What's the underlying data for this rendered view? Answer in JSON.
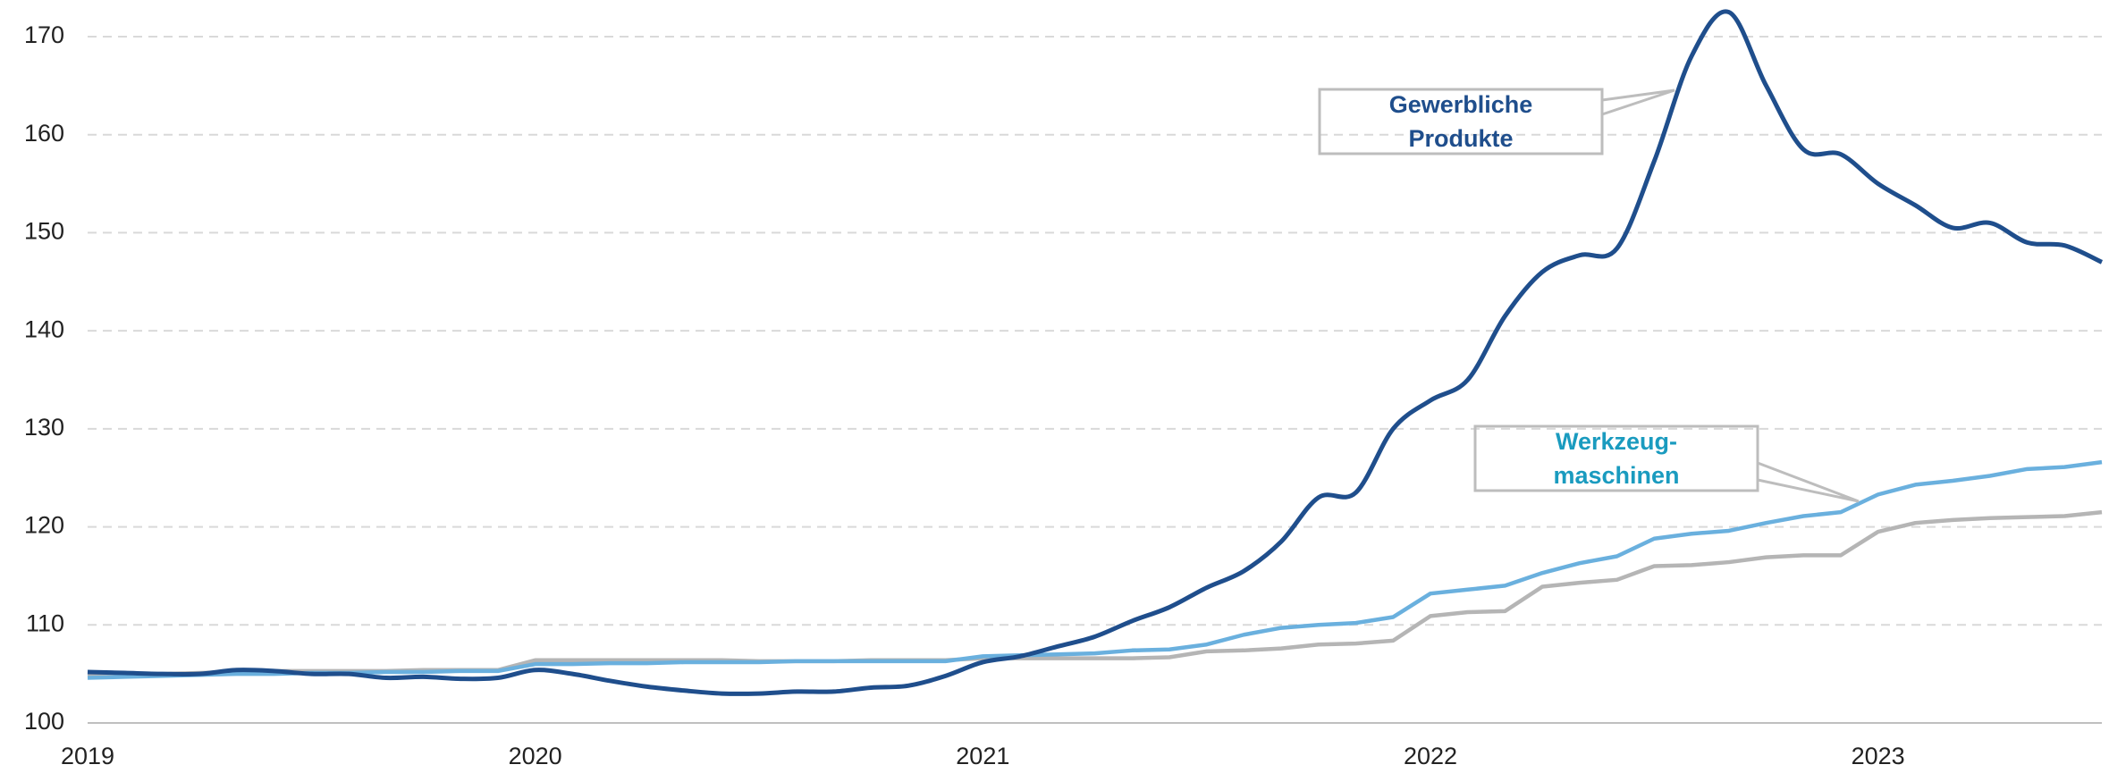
{
  "chart_data": {
    "type": "line",
    "categories": [
      "2019",
      null,
      null,
      null,
      null,
      null,
      null,
      null,
      null,
      null,
      null,
      null,
      "2020",
      null,
      null,
      null,
      null,
      null,
      null,
      null,
      null,
      null,
      null,
      null,
      "2021",
      null,
      null,
      null,
      null,
      null,
      null,
      null,
      null,
      null,
      null,
      null,
      "2022",
      null,
      null,
      null,
      null,
      null,
      null,
      null,
      null,
      null,
      null,
      null,
      "2023",
      null,
      null,
      null,
      null,
      null,
      null
    ],
    "series": [
      {
        "name": "Gewerbliche Produkte",
        "color": "#1f4e8c",
        "label_color": "#1f4e8c",
        "smooth": true,
        "values": [
          105.2,
          105.1,
          105.0,
          105.0,
          105.4,
          105.3,
          105.0,
          105.0,
          104.6,
          104.7,
          104.5,
          104.6,
          105.4,
          105.0,
          104.3,
          103.7,
          103.3,
          103.0,
          103.0,
          103.2,
          103.2,
          103.6,
          103.8,
          104.8,
          106.2,
          106.8,
          107.8,
          108.8,
          110.4,
          111.8,
          113.8,
          115.5,
          118.5,
          123.0,
          123.5,
          130.0,
          132.9,
          135.0,
          141.5,
          146.0,
          147.7,
          148.4,
          157.3,
          168.0,
          172.5,
          165.0,
          158.5,
          158.0,
          155.0,
          152.8,
          150.5,
          151.0,
          149.0,
          148.7,
          147.0
        ]
      },
      {
        "name": "Werkzeug-maschinen",
        "color": "#6ab0de",
        "label_color": "#1a9bbf",
        "values": [
          104.6,
          104.7,
          104.8,
          104.9,
          105.0,
          105.0,
          105.1,
          105.1,
          105.2,
          105.2,
          105.3,
          105.3,
          106.0,
          106.0,
          106.1,
          106.1,
          106.2,
          106.2,
          106.2,
          106.3,
          106.3,
          106.3,
          106.3,
          106.3,
          106.8,
          106.9,
          107.0,
          107.1,
          107.4,
          107.5,
          108.0,
          109.0,
          109.7,
          110.0,
          110.2,
          110.8,
          113.2,
          113.6,
          114.0,
          115.3,
          116.3,
          117.0,
          118.8,
          119.3,
          119.6,
          120.4,
          121.1,
          121.5,
          123.3,
          124.3,
          124.7,
          125.2,
          125.9,
          126.1,
          126.6
        ]
      },
      {
        "color": "#b5b5b5",
        "values": [
          104.9,
          105.0,
          105.0,
          105.1,
          105.2,
          105.3,
          105.3,
          105.3,
          105.3,
          105.4,
          105.4,
          105.4,
          106.4,
          106.4,
          106.4,
          106.4,
          106.4,
          106.4,
          106.3,
          106.3,
          106.3,
          106.4,
          106.4,
          106.4,
          106.6,
          106.6,
          106.6,
          106.6,
          106.6,
          106.7,
          107.3,
          107.4,
          107.6,
          108.0,
          108.1,
          108.4,
          110.9,
          111.3,
          111.4,
          113.9,
          114.3,
          114.6,
          116.0,
          116.1,
          116.4,
          116.9,
          117.1,
          117.1,
          119.5,
          120.4,
          120.7,
          120.9,
          121.0,
          121.1,
          121.5
        ]
      }
    ],
    "ylim": [
      100,
      170
    ],
    "yticks": [
      100,
      110,
      120,
      130,
      140,
      150,
      160,
      170
    ],
    "grid": true
  }
}
